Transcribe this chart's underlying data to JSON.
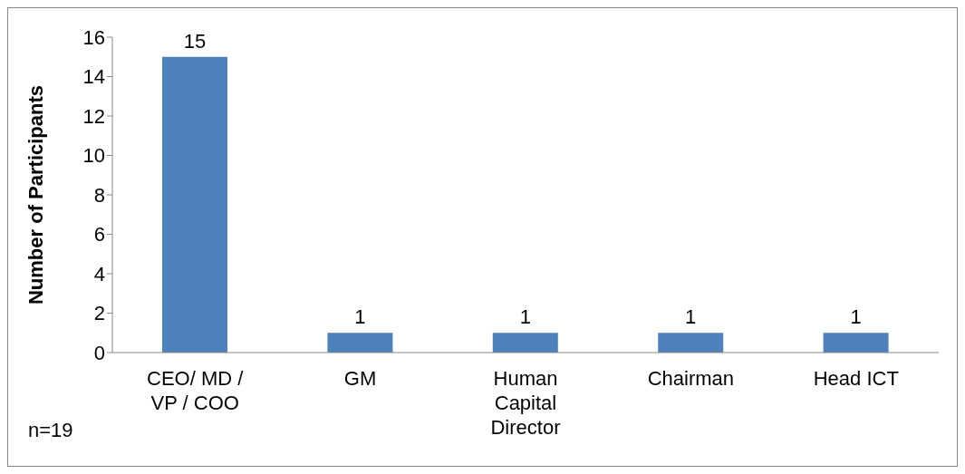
{
  "chart_data": {
    "type": "bar",
    "ylabel": "Number of Participants",
    "categories": [
      "CEO/ MD / VP / COO",
      "GM",
      "Human Capital Director",
      "Chairman",
      "Head ICT"
    ],
    "values": [
      15,
      1,
      1,
      1,
      1
    ],
    "color": "#4f81bd",
    "ylim": [
      0,
      16
    ],
    "yticks": [
      0,
      2,
      4,
      6,
      8,
      10,
      12,
      14,
      16
    ],
    "grid": false,
    "legend": false,
    "data_labels": true,
    "annotations": [
      "n=19"
    ]
  }
}
